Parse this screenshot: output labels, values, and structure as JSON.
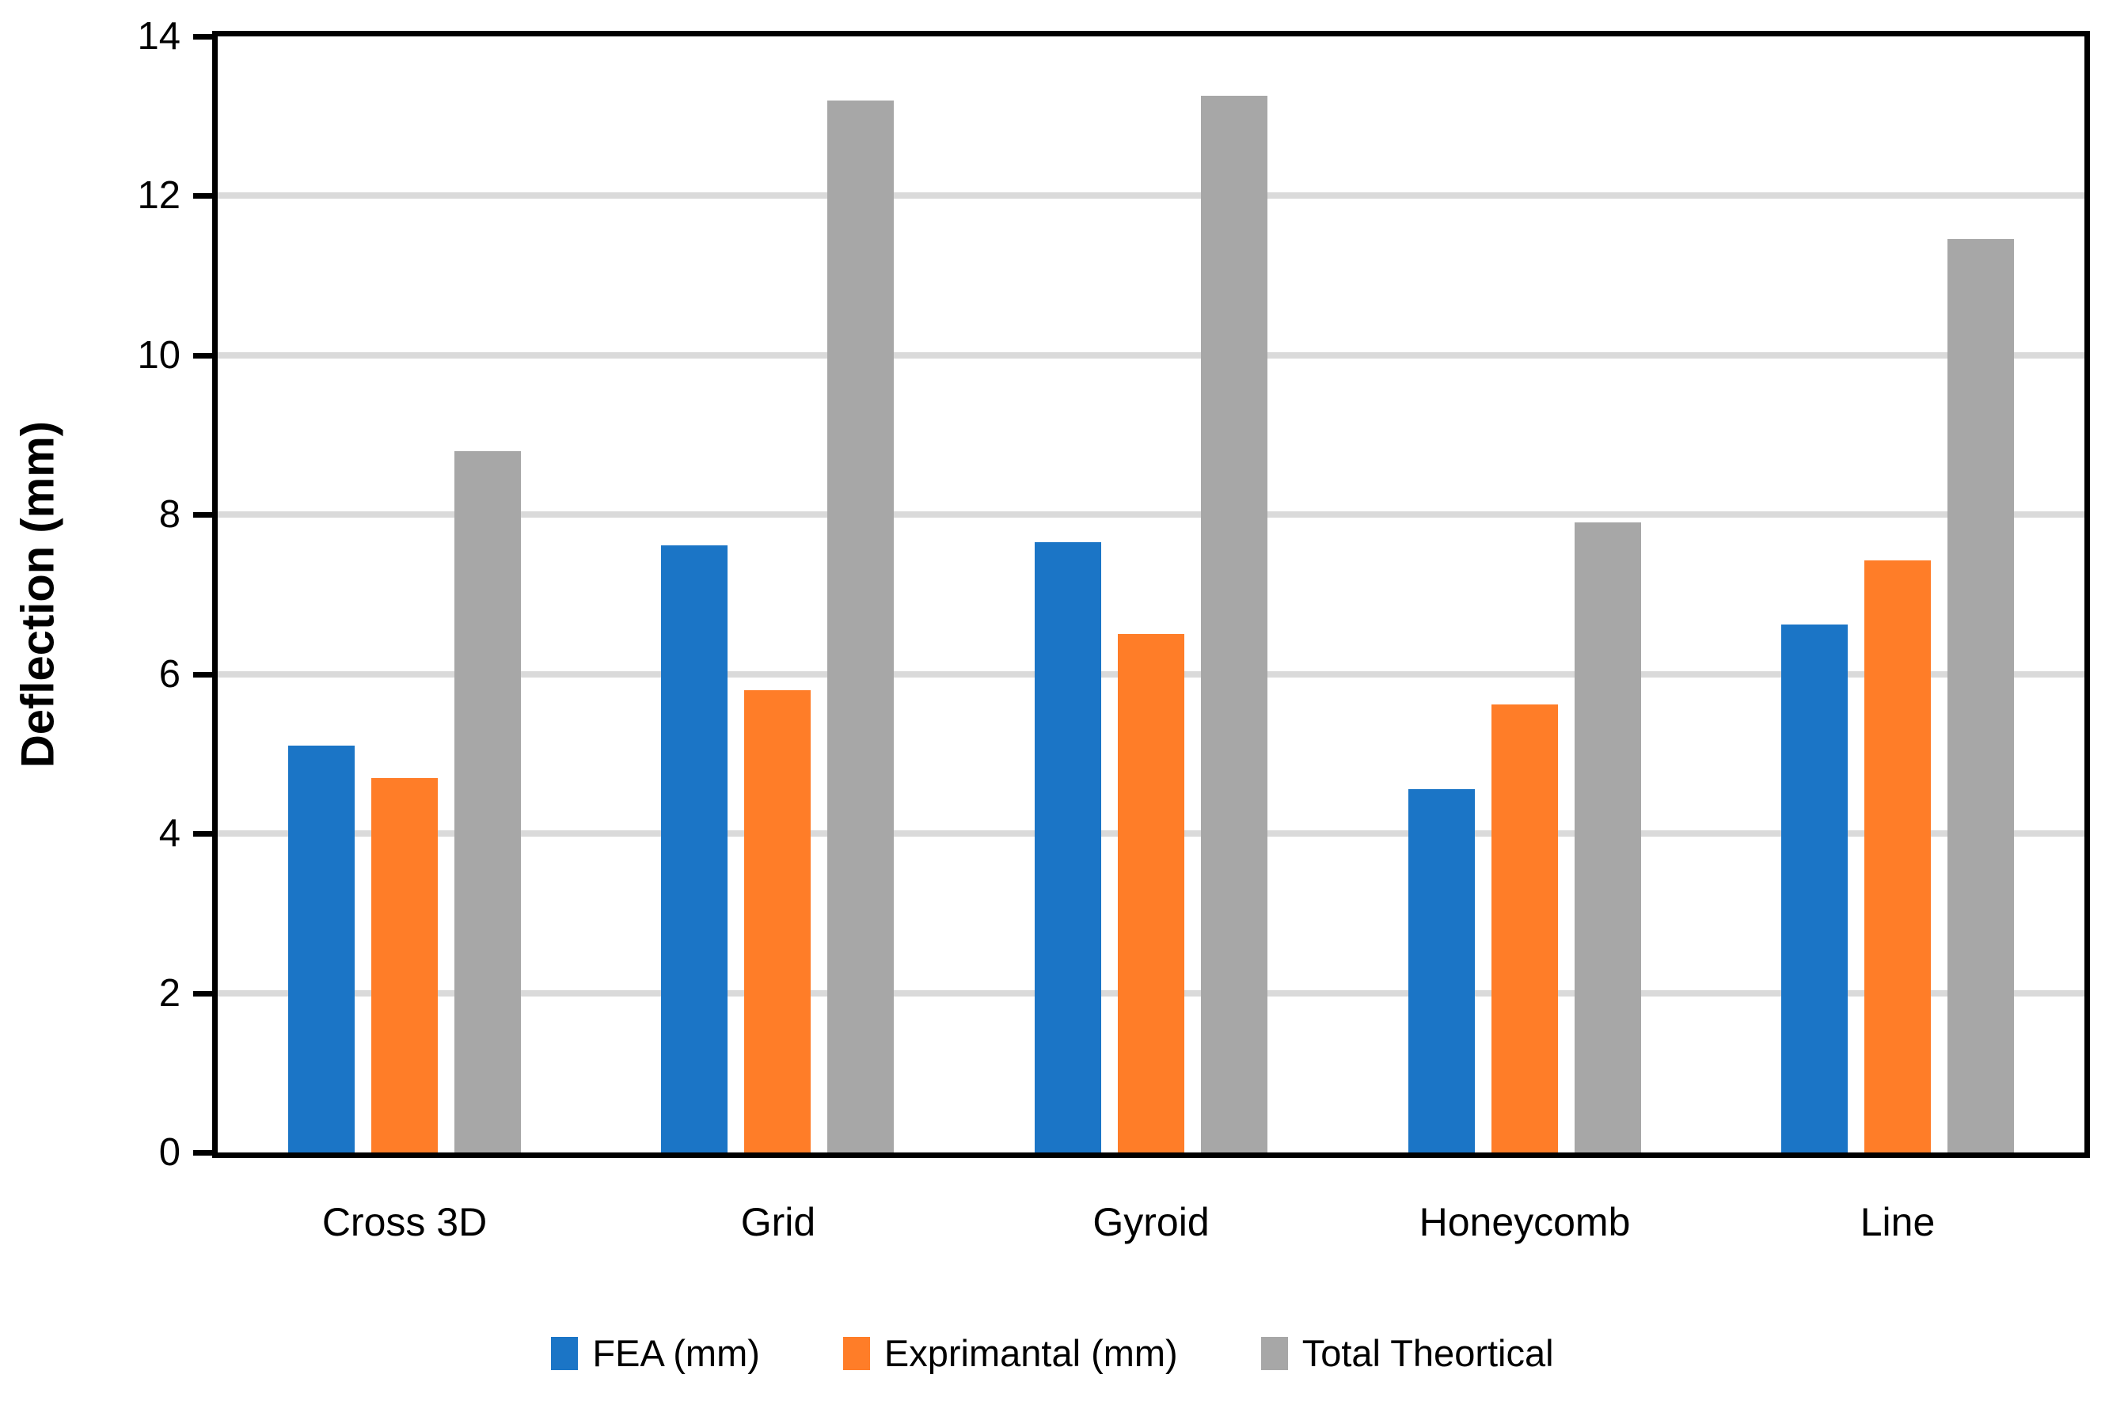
{
  "chart_data": {
    "type": "bar",
    "title": "",
    "xlabel": "",
    "ylabel": "Deflection (mm)",
    "ylim": [
      0,
      14
    ],
    "ytick_step": 2,
    "yticks": [
      "0",
      "2",
      "4",
      "6",
      "8",
      "10",
      "12",
      "14"
    ],
    "grid": "horizontal-on",
    "legend_position": "bottom-center",
    "categories": [
      "Cross 3D",
      "Grid",
      "Gyroid",
      "Honeycomb",
      "Line"
    ],
    "series": [
      {
        "name": "FEA (mm)",
        "color": "#1B75C6",
        "values": [
          5.1,
          7.62,
          7.66,
          4.56,
          6.62
        ]
      },
      {
        "name": "Exprimantal (mm)",
        "color": "#FF7D28",
        "values": [
          4.7,
          5.8,
          6.5,
          5.62,
          7.43
        ]
      },
      {
        "name": "Total Theortical",
        "color": "#A7A7A7",
        "values": [
          8.8,
          13.2,
          13.26,
          7.9,
          11.46
        ]
      }
    ],
    "colors": {
      "axis": "#000000",
      "gridline": "#DADADA",
      "background": "#FFFFFF",
      "tick_text": "#000000"
    }
  }
}
